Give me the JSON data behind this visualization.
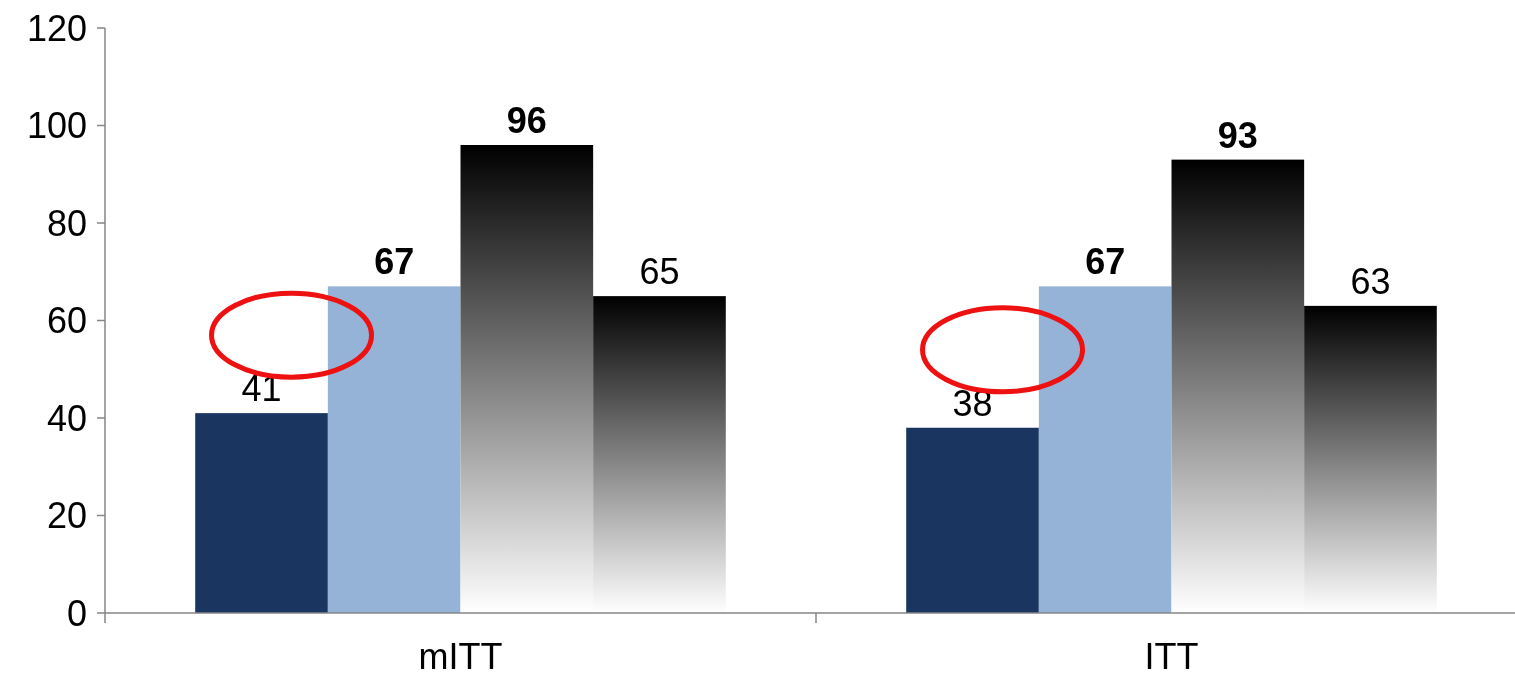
{
  "chart_data": {
    "type": "bar",
    "categories": [
      "mITT",
      "ITT"
    ],
    "series": [
      {
        "color": "#1a3660",
        "values": [
          41,
          38
        ]
      },
      {
        "color": "#95b3d7",
        "values": [
          67,
          67
        ]
      },
      {
        "color": "#000000",
        "values": [
          96,
          93
        ]
      },
      {
        "color": "#000000",
        "values": [
          65,
          63
        ]
      }
    ],
    "ylim": [
      0,
      120
    ],
    "yticks": [
      0,
      20,
      40,
      60,
      80,
      100,
      120
    ],
    "grid": false,
    "data_labels": true
  }
}
